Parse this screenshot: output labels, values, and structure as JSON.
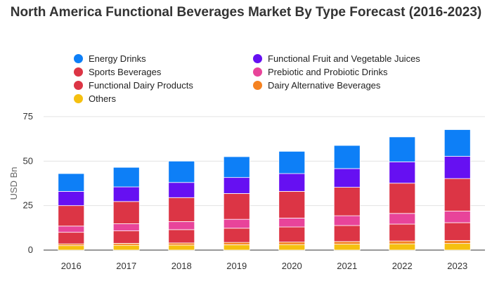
{
  "chart_data": {
    "type": "bar",
    "stacked": true,
    "title": "North America Functional Beverages Market By Type Forecast (2016-2023)",
    "ylabel": "USD Bn",
    "xlabel": "",
    "ylim": [
      0,
      75
    ],
    "yticks": [
      "0",
      "25",
      "50",
      "75"
    ],
    "grid": true,
    "legend_position": "top",
    "categories": [
      "2016",
      "2017",
      "2018",
      "2019",
      "2020",
      "2021",
      "2022",
      "2023"
    ],
    "series": [
      {
        "name": "Others",
        "color": "#f5c010",
        "values": [
          2.5,
          2.7,
          2.8,
          3.0,
          3.1,
          3.3,
          3.5,
          3.7
        ]
      },
      {
        "name": "Dairy Alternative Beverages",
        "color": "#f58220",
        "values": [
          1.0,
          1.1,
          1.2,
          1.3,
          1.4,
          1.5,
          1.6,
          1.7
        ]
      },
      {
        "name": "Functional Dairy Products",
        "color": "#dc3545",
        "values": [
          6.5,
          7.0,
          7.5,
          8.0,
          8.5,
          9.0,
          9.5,
          10.0
        ]
      },
      {
        "name": "Prebiotic and Probiotic Drinks",
        "color": "#e8449a",
        "values": [
          3.5,
          4.0,
          4.5,
          5.0,
          5.0,
          5.5,
          6.0,
          6.5
        ]
      },
      {
        "name": "Sports Beverages",
        "color": "#dc3545",
        "values": [
          11.5,
          12.5,
          13.5,
          14.5,
          15.0,
          16.0,
          17.0,
          18.3
        ]
      },
      {
        "name": "Functional Fruit and Vegetable Juices",
        "color": "#6610f2",
        "values": [
          8.0,
          8.2,
          8.5,
          9.0,
          10.0,
          10.5,
          12.0,
          12.5
        ]
      },
      {
        "name": "Energy Drinks",
        "color": "#0d7ff7",
        "values": [
          10.0,
          11.0,
          12.0,
          11.7,
          12.5,
          13.0,
          14.0,
          15.0
        ]
      }
    ],
    "legend": [
      {
        "label": "Energy Drinks",
        "color": "#0d7ff7"
      },
      {
        "label": "Functional Fruit and Vegetable Juices",
        "color": "#6610f2"
      },
      {
        "label": "Sports Beverages",
        "color": "#dc3545"
      },
      {
        "label": "Prebiotic and Probiotic Drinks",
        "color": "#e8449a"
      },
      {
        "label": "Functional Dairy Products",
        "color": "#dc3545"
      },
      {
        "label": "Dairy Alternative Beverages",
        "color": "#f58220"
      },
      {
        "label": "Others",
        "color": "#f5c010"
      }
    ]
  }
}
